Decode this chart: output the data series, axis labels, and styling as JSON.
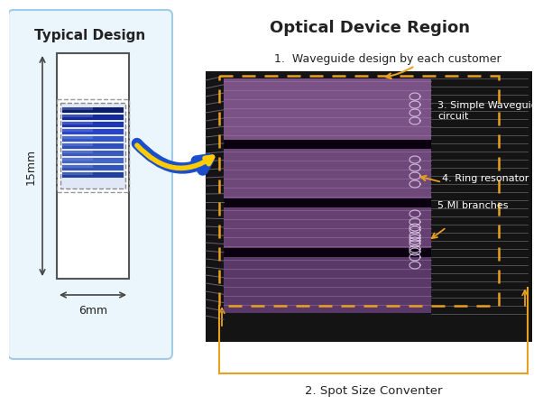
{
  "bg_color": "#ffffff",
  "title_left": "Typical Design",
  "title_right": "Optical Device Region",
  "label1": "1.  Waveguide design by each customer",
  "label2": "2. Spot Size Conventer",
  "label3": "3. Simple Waveguide\ncircuit",
  "label4": "4. Ring resonator",
  "label5": "5.MI branches",
  "dim_height": "15mm",
  "dim_width": "6mm",
  "left_bg_edge": "#a0cce8",
  "left_bg_fill": "#eaf5fc",
  "chip_bg_color": "#111111",
  "chip_dark": "#1a0a22",
  "purple_main": "#6b4878",
  "purple_light": "#8b6898",
  "purple_dark": "#3d1f4a",
  "dashed_box_color": "#e8a020",
  "arrow_color": "#e8a020",
  "text_color_dark": "#222222",
  "text_color_white": "#ffffff",
  "gray_stripe": "#888899",
  "gray_line": "#aaaaaa",
  "dim_arrow_color": "#444444"
}
